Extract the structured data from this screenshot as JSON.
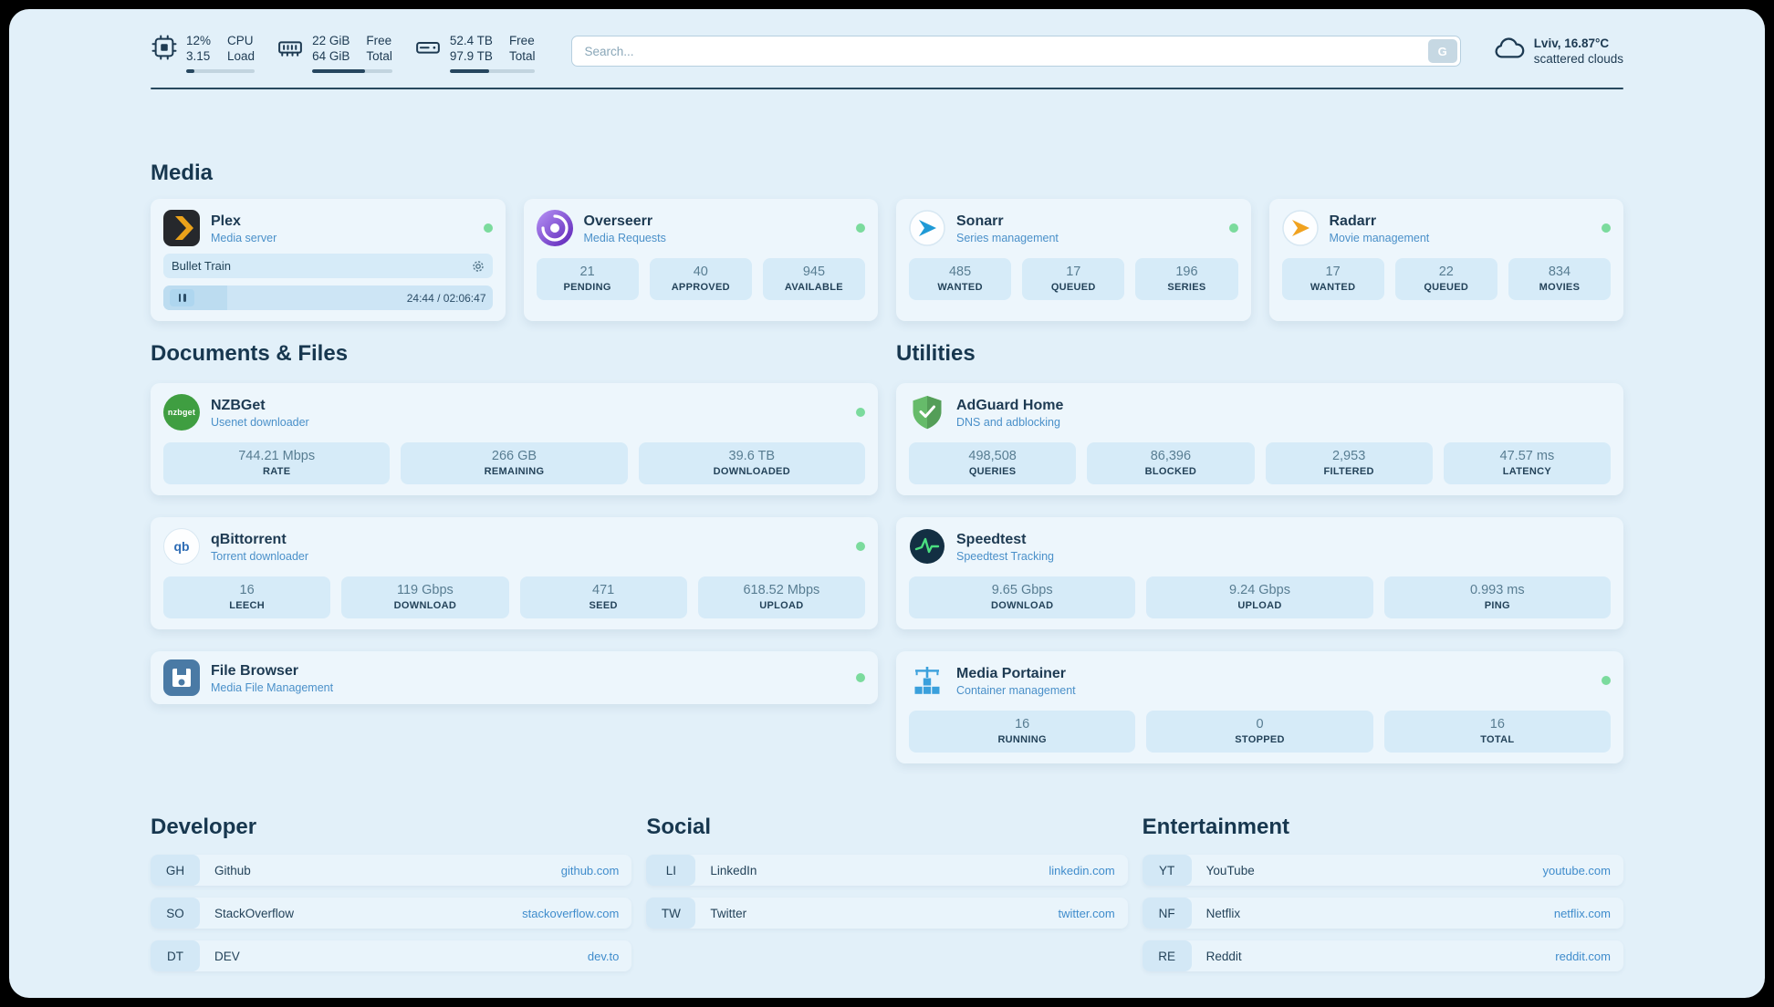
{
  "header": {
    "cpu": {
      "value_top": "12%",
      "value_bottom": "3.15",
      "label_top": "CPU",
      "label_bottom": "Load",
      "progress_pct": 12
    },
    "ram": {
      "value_top": "22 GiB",
      "value_bottom": "64 GiB",
      "label_top": "Free",
      "label_bottom": "Total",
      "progress_pct": 66
    },
    "disk": {
      "value_top": "52.4 TB",
      "value_bottom": "97.9 TB",
      "label_top": "Free",
      "label_bottom": "Total",
      "progress_pct": 46
    },
    "search": {
      "placeholder": "Search...",
      "button_label": "G"
    },
    "weather": {
      "location": "Lviv, 16.87°C",
      "condition": "scattered clouds"
    }
  },
  "media": {
    "title": "Media",
    "plex": {
      "name": "Plex",
      "subtitle": "Media server",
      "now_playing": "Bullet Train",
      "time": "24:44 / 02:06:47",
      "progress_pct": 19.5
    },
    "overseerr": {
      "name": "Overseerr",
      "subtitle": "Media Requests",
      "stats": [
        {
          "value": "21",
          "label": "PENDING"
        },
        {
          "value": "40",
          "label": "APPROVED"
        },
        {
          "value": "945",
          "label": "AVAILABLE"
        }
      ]
    },
    "sonarr": {
      "name": "Sonarr",
      "subtitle": "Series management",
      "stats": [
        {
          "value": "485",
          "label": "WANTED"
        },
        {
          "value": "17",
          "label": "QUEUED"
        },
        {
          "value": "196",
          "label": "SERIES"
        }
      ]
    },
    "radarr": {
      "name": "Radarr",
      "subtitle": "Movie management",
      "stats": [
        {
          "value": "17",
          "label": "WANTED"
        },
        {
          "value": "22",
          "label": "QUEUED"
        },
        {
          "value": "834",
          "label": "MOVIES"
        }
      ]
    }
  },
  "documents": {
    "title": "Documents & Files",
    "nzbget": {
      "name": "NZBGet",
      "subtitle": "Usenet downloader",
      "icon_text": "nzbget",
      "stats": [
        {
          "value": "744.21 Mbps",
          "label": "RATE"
        },
        {
          "value": "266 GB",
          "label": "REMAINING"
        },
        {
          "value": "39.6 TB",
          "label": "DOWNLOADED"
        }
      ]
    },
    "qbittorrent": {
      "name": "qBittorrent",
      "subtitle": "Torrent downloader",
      "icon_text": "qb",
      "stats": [
        {
          "value": "16",
          "label": "LEECH"
        },
        {
          "value": "119 Gbps",
          "label": "DOWNLOAD"
        },
        {
          "value": "471",
          "label": "SEED"
        },
        {
          "value": "618.52 Mbps",
          "label": "UPLOAD"
        }
      ]
    },
    "filebrowser": {
      "name": "File Browser",
      "subtitle": "Media File Management"
    }
  },
  "utilities": {
    "title": "Utilities",
    "adguard": {
      "name": "AdGuard Home",
      "subtitle": "DNS and adblocking",
      "stats": [
        {
          "value": "498,508",
          "label": "QUERIES"
        },
        {
          "value": "86,396",
          "label": "BLOCKED"
        },
        {
          "value": "2,953",
          "label": "FILTERED"
        },
        {
          "value": "47.57 ms",
          "label": "LATENCY"
        }
      ]
    },
    "speedtest": {
      "name": "Speedtest",
      "subtitle": "Speedtest Tracking",
      "stats": [
        {
          "value": "9.65 Gbps",
          "label": "DOWNLOAD"
        },
        {
          "value": "9.24 Gbps",
          "label": "UPLOAD"
        },
        {
          "value": "0.993 ms",
          "label": "PING"
        }
      ]
    },
    "portainer": {
      "name": "Media Portainer",
      "subtitle": "Container management",
      "stats": [
        {
          "value": "16",
          "label": "RUNNING"
        },
        {
          "value": "0",
          "label": "STOPPED"
        },
        {
          "value": "16",
          "label": "TOTAL"
        }
      ]
    }
  },
  "bookmarks": {
    "developer": {
      "title": "Developer",
      "items": [
        {
          "abbr": "GH",
          "name": "Github",
          "url": "github.com"
        },
        {
          "abbr": "SO",
          "name": "StackOverflow",
          "url": "stackoverflow.com"
        },
        {
          "abbr": "DT",
          "name": "DEV",
          "url": "dev.to"
        }
      ]
    },
    "social": {
      "title": "Social",
      "items": [
        {
          "abbr": "LI",
          "name": "LinkedIn",
          "url": "linkedin.com"
        },
        {
          "abbr": "TW",
          "name": "Twitter",
          "url": "twitter.com"
        }
      ]
    },
    "entertainment": {
      "title": "Entertainment",
      "items": [
        {
          "abbr": "YT",
          "name": "YouTube",
          "url": "youtube.com"
        },
        {
          "abbr": "NF",
          "name": "Netflix",
          "url": "netflix.com"
        },
        {
          "abbr": "RE",
          "name": "Reddit",
          "url": "reddit.com"
        }
      ]
    }
  },
  "colors": {
    "background": "#e2f0f9",
    "card": "#edf6fc",
    "tile": "#d6ebf8",
    "accent_link": "#3f8ccc",
    "status_online": "#7bdb9d",
    "heading": "#17374f"
  }
}
